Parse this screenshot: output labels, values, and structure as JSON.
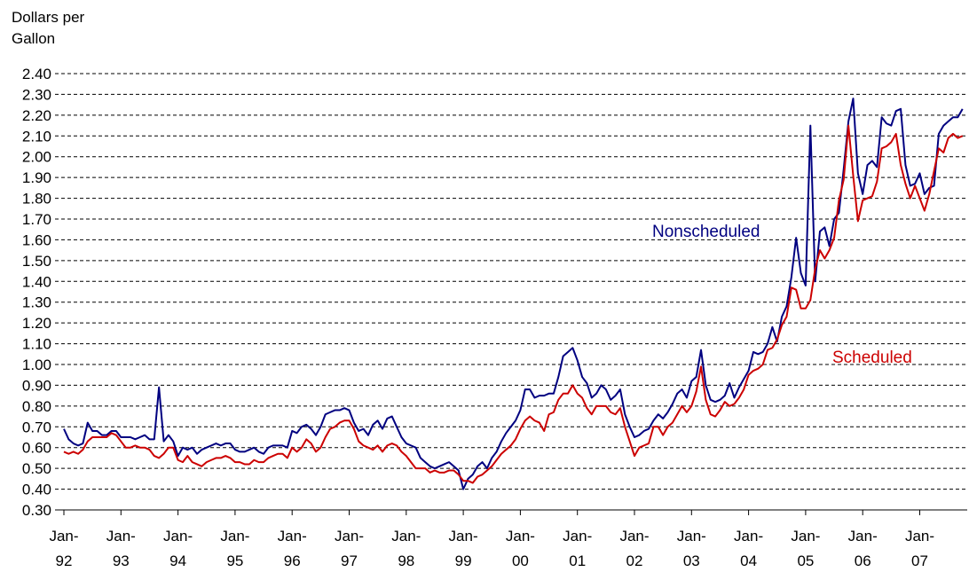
{
  "chart_data": {
    "type": "line",
    "y_label": "Dollars per Gallon",
    "categories": [
      "Jan-92",
      null,
      null,
      null,
      null,
      null,
      null,
      null,
      null,
      null,
      null,
      null,
      "Jan-93",
      null,
      null,
      null,
      null,
      null,
      null,
      null,
      null,
      null,
      null,
      null,
      "Jan-94",
      null,
      null,
      null,
      null,
      null,
      null,
      null,
      null,
      null,
      null,
      null,
      "Jan-95",
      null,
      null,
      null,
      null,
      null,
      null,
      null,
      null,
      null,
      null,
      null,
      "Jan-96",
      null,
      null,
      null,
      null,
      null,
      null,
      null,
      null,
      null,
      null,
      null,
      "Jan-97",
      null,
      null,
      null,
      null,
      null,
      null,
      null,
      null,
      null,
      null,
      null,
      "Jan-98",
      null,
      null,
      null,
      null,
      null,
      null,
      null,
      null,
      null,
      null,
      null,
      "Jan-99",
      null,
      null,
      null,
      null,
      null,
      null,
      null,
      null,
      null,
      null,
      null,
      "Jan-00",
      null,
      null,
      null,
      null,
      null,
      null,
      null,
      null,
      null,
      null,
      null,
      "Jan-01",
      null,
      null,
      null,
      null,
      null,
      null,
      null,
      null,
      null,
      null,
      null,
      "Jan-02",
      null,
      null,
      null,
      null,
      null,
      null,
      null,
      null,
      null,
      null,
      null,
      "Jan-03",
      null,
      null,
      null,
      null,
      null,
      null,
      null,
      null,
      null,
      null,
      null,
      "Jan-04",
      null,
      null,
      null,
      null,
      null,
      null,
      null,
      null,
      null,
      null,
      null,
      "Jan-05",
      null,
      null,
      null,
      null,
      null,
      null,
      null,
      null,
      null,
      null,
      null,
      "Jan-06",
      null,
      null,
      null,
      null,
      null,
      null,
      null,
      null,
      null,
      null,
      null,
      "Jan-07",
      null,
      null,
      null,
      null,
      null,
      null,
      null,
      null,
      null
    ],
    "series": [
      {
        "name": "Nonscheduled",
        "color": "#000080",
        "values": [
          0.69,
          0.64,
          0.62,
          0.61,
          0.62,
          0.72,
          0.68,
          0.68,
          0.66,
          0.66,
          0.68,
          0.68,
          0.65,
          0.65,
          0.65,
          0.64,
          0.65,
          0.66,
          0.64,
          0.64,
          0.89,
          0.63,
          0.66,
          0.63,
          0.56,
          0.6,
          0.59,
          0.6,
          0.57,
          0.59,
          0.6,
          0.61,
          0.62,
          0.61,
          0.62,
          0.62,
          0.59,
          0.58,
          0.58,
          0.59,
          0.6,
          0.58,
          0.57,
          0.6,
          0.61,
          0.61,
          0.61,
          0.6,
          0.68,
          0.67,
          0.7,
          0.71,
          0.69,
          0.66,
          0.7,
          0.76,
          0.77,
          0.78,
          0.78,
          0.79,
          0.78,
          0.72,
          0.68,
          0.69,
          0.66,
          0.71,
          0.73,
          0.69,
          0.74,
          0.75,
          0.7,
          0.65,
          0.62,
          0.61,
          0.6,
          0.55,
          0.53,
          0.51,
          0.5,
          0.51,
          0.52,
          0.53,
          0.51,
          0.49,
          0.4,
          0.45,
          0.47,
          0.51,
          0.53,
          0.5,
          0.55,
          0.58,
          0.63,
          0.67,
          0.7,
          0.73,
          0.78,
          0.88,
          0.88,
          0.84,
          0.85,
          0.85,
          0.86,
          0.86,
          0.94,
          1.04,
          1.06,
          1.08,
          1.02,
          0.94,
          0.91,
          0.84,
          0.86,
          0.9,
          0.88,
          0.83,
          0.85,
          0.88,
          0.76,
          0.7,
          0.65,
          0.66,
          0.68,
          0.69,
          0.73,
          0.76,
          0.74,
          0.77,
          0.81,
          0.86,
          0.88,
          0.84,
          0.92,
          0.94,
          1.07,
          0.9,
          0.83,
          0.82,
          0.83,
          0.85,
          0.91,
          0.84,
          0.89,
          0.93,
          0.97,
          1.06,
          1.05,
          1.06,
          1.1,
          1.18,
          1.11,
          1.23,
          1.28,
          1.42,
          1.61,
          1.44,
          1.38,
          2.15,
          1.4,
          1.64,
          1.66,
          1.57,
          1.7,
          1.73,
          1.94,
          2.17,
          2.28,
          1.92,
          1.82,
          1.96,
          1.98,
          1.95,
          2.19,
          2.16,
          2.15,
          2.22,
          2.23,
          1.96,
          1.86,
          1.87,
          1.92,
          1.82,
          1.85,
          1.86,
          2.11,
          2.15,
          2.17,
          2.19,
          2.19,
          2.23
        ]
      },
      {
        "name": "Scheduled",
        "color": "#cc0000",
        "values": [
          0.58,
          0.57,
          0.58,
          0.57,
          0.59,
          0.63,
          0.65,
          0.65,
          0.65,
          0.65,
          0.67,
          0.66,
          0.63,
          0.6,
          0.6,
          0.61,
          0.6,
          0.6,
          0.59,
          0.56,
          0.55,
          0.57,
          0.6,
          0.6,
          0.54,
          0.53,
          0.56,
          0.53,
          0.52,
          0.51,
          0.53,
          0.54,
          0.55,
          0.55,
          0.56,
          0.55,
          0.53,
          0.53,
          0.52,
          0.52,
          0.54,
          0.53,
          0.53,
          0.55,
          0.56,
          0.57,
          0.57,
          0.55,
          0.6,
          0.58,
          0.6,
          0.64,
          0.62,
          0.58,
          0.6,
          0.65,
          0.69,
          0.7,
          0.72,
          0.73,
          0.73,
          0.69,
          0.63,
          0.61,
          0.6,
          0.59,
          0.61,
          0.58,
          0.61,
          0.62,
          0.61,
          0.58,
          0.56,
          0.53,
          0.5,
          0.5,
          0.5,
          0.48,
          0.49,
          0.48,
          0.48,
          0.49,
          0.49,
          0.47,
          0.44,
          0.44,
          0.43,
          0.46,
          0.47,
          0.49,
          0.51,
          0.54,
          0.57,
          0.59,
          0.61,
          0.64,
          0.69,
          0.73,
          0.75,
          0.73,
          0.72,
          0.68,
          0.76,
          0.77,
          0.83,
          0.86,
          0.86,
          0.9,
          0.86,
          0.84,
          0.79,
          0.76,
          0.8,
          0.8,
          0.8,
          0.77,
          0.76,
          0.79,
          0.7,
          0.63,
          0.56,
          0.6,
          0.61,
          0.62,
          0.7,
          0.7,
          0.66,
          0.7,
          0.72,
          0.76,
          0.8,
          0.77,
          0.8,
          0.87,
          0.99,
          0.83,
          0.76,
          0.75,
          0.78,
          0.82,
          0.8,
          0.81,
          0.84,
          0.88,
          0.95,
          0.97,
          0.98,
          1.0,
          1.07,
          1.08,
          1.12,
          1.19,
          1.23,
          1.37,
          1.36,
          1.27,
          1.27,
          1.31,
          1.46,
          1.55,
          1.51,
          1.55,
          1.61,
          1.79,
          1.89,
          2.15,
          1.91,
          1.69,
          1.79,
          1.8,
          1.81,
          1.88,
          2.04,
          2.05,
          2.07,
          2.11,
          1.96,
          1.87,
          1.8,
          1.86,
          1.8,
          1.74,
          1.82,
          1.93,
          2.04,
          2.02,
          2.09,
          2.11,
          2.09,
          2.1
        ]
      }
    ],
    "ylim": [
      0.3,
      2.4
    ],
    "yticks": [
      {
        "value": 0.3,
        "label": "0.30"
      },
      {
        "value": 0.4,
        "label": "0.40"
      },
      {
        "value": 0.5,
        "label": "0.50"
      },
      {
        "value": 0.6,
        "label": "0.60"
      },
      {
        "value": 0.7,
        "label": "0.70"
      },
      {
        "value": 0.8,
        "label": "0.80"
      },
      {
        "value": 0.9,
        "label": "0.90"
      },
      {
        "value": 1.0,
        "label": "1.00"
      },
      {
        "value": 1.1,
        "label": "1.10"
      },
      {
        "value": 1.2,
        "label": "1.20"
      },
      {
        "value": 1.3,
        "label": "1.30"
      },
      {
        "value": 1.4,
        "label": "1.40"
      },
      {
        "value": 1.5,
        "label": "1.50"
      },
      {
        "value": 1.6,
        "label": "1.60"
      },
      {
        "value": 1.7,
        "label": "1.70"
      },
      {
        "value": 1.8,
        "label": "1.80"
      },
      {
        "value": 1.9,
        "label": "1.90"
      },
      {
        "value": 2.0,
        "label": "2.00"
      },
      {
        "value": 2.1,
        "label": "2.10"
      },
      {
        "value": 2.2,
        "label": "2.20"
      },
      {
        "value": 2.3,
        "label": "2.30"
      },
      {
        "value": 2.4,
        "label": "2.40"
      }
    ],
    "grid": true
  }
}
